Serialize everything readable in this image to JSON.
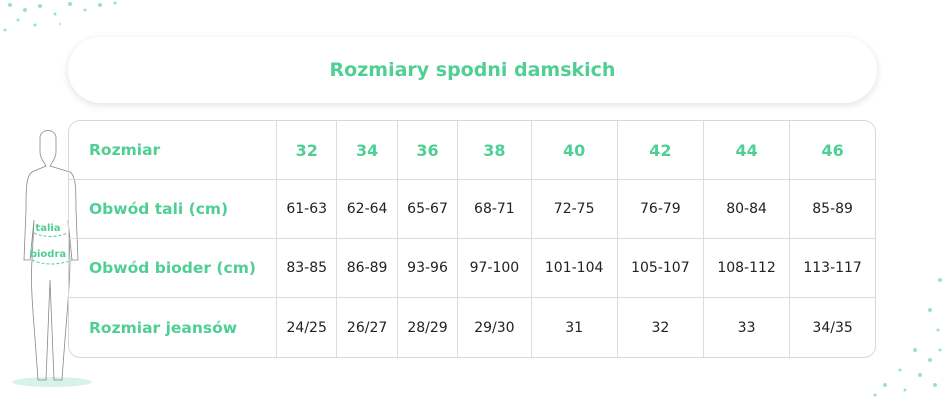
{
  "title": "Rozmiary spodni damskich",
  "accent": "#4fcf94",
  "figure": {
    "waist_label": "talia",
    "hip_label": "biodra"
  },
  "table": {
    "header": {
      "label": "Rozmiar",
      "values": [
        "32",
        "34",
        "36",
        "38",
        "40",
        "42",
        "44",
        "46"
      ]
    },
    "rows": [
      {
        "label": "Obwód tali (cm)",
        "values": [
          "61-63",
          "62-64",
          "65-67",
          "68-71",
          "72-75",
          "76-79",
          "80-84",
          "85-89"
        ]
      },
      {
        "label": "Obwód bioder (cm)",
        "values": [
          "83-85",
          "86-89",
          "93-96",
          "97-100",
          "101-104",
          "105-107",
          "108-112",
          "113-117"
        ]
      },
      {
        "label": "Rozmiar jeansów",
        "values": [
          "24/25",
          "26/27",
          "28/29",
          "29/30",
          "31",
          "32",
          "33",
          "34/35"
        ]
      }
    ]
  }
}
